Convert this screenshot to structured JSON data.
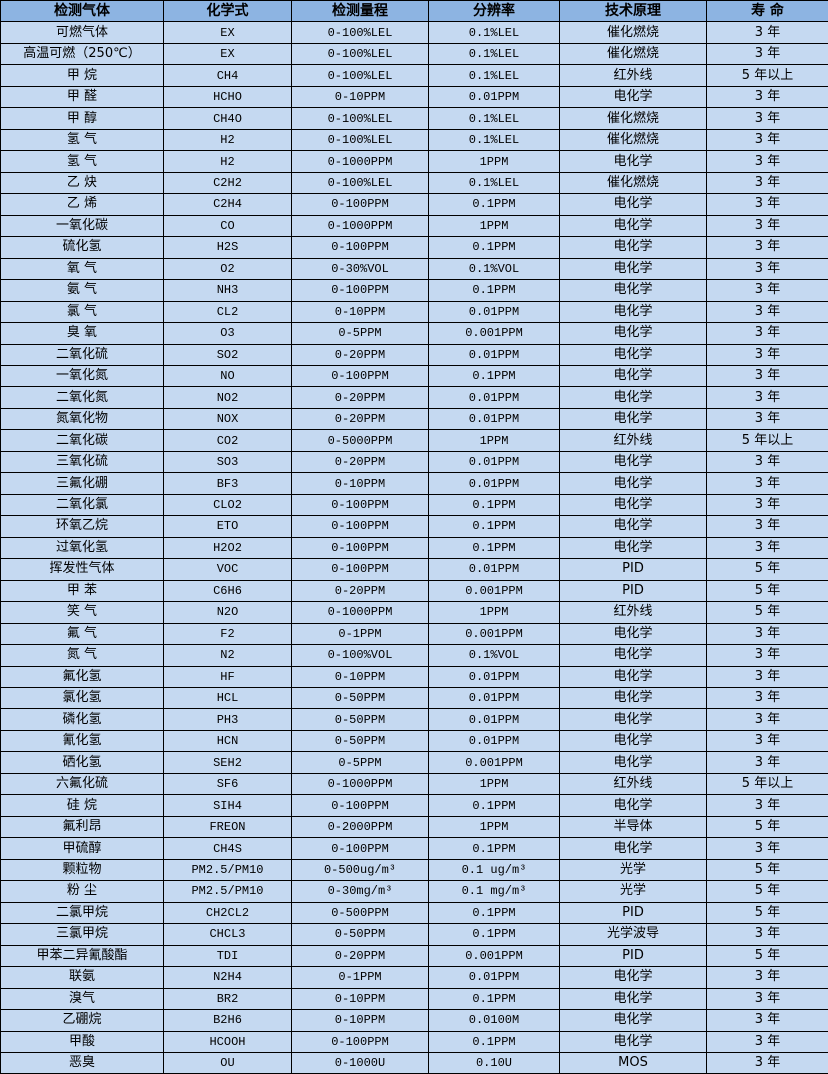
{
  "table": {
    "header_color": "#8DB4E2",
    "row_color": "#C5D9F1",
    "headers": [
      "检测气体",
      "化学式",
      "检测量程",
      "分辨率",
      "技术原理",
      "寿 命"
    ],
    "rows": [
      [
        "可燃气体",
        "EX",
        "0-100%LEL",
        "0.1%LEL",
        "催化燃烧",
        "3 年"
      ],
      [
        "高温可燃（250℃）",
        "EX",
        "0-100%LEL",
        "0.1%LEL",
        "催化燃烧",
        "3 年"
      ],
      [
        "甲 烷",
        "CH4",
        "0-100%LEL",
        "0.1%LEL",
        "红外线",
        "5 年以上"
      ],
      [
        "甲 醛",
        "HCHO",
        "0-10PPM",
        "0.01PPM",
        "电化学",
        "3 年"
      ],
      [
        "甲 醇",
        "CH4O",
        "0-100%LEL",
        "0.1%LEL",
        "催化燃烧",
        "3 年"
      ],
      [
        "氢 气",
        "H2",
        "0-100%LEL",
        "0.1%LEL",
        "催化燃烧",
        "3 年"
      ],
      [
        "氢 气",
        "H2",
        "0-1000PPM",
        "1PPM",
        "电化学",
        "3 年"
      ],
      [
        "乙 炔",
        "C2H2",
        "0-100%LEL",
        "0.1%LEL",
        "催化燃烧",
        "3 年"
      ],
      [
        "乙 烯",
        "C2H4",
        "0-100PPM",
        "0.1PPM",
        "电化学",
        "3 年"
      ],
      [
        "一氧化碳",
        "CO",
        "0-1000PPM",
        "1PPM",
        "电化学",
        "3 年"
      ],
      [
        "硫化氢",
        "H2S",
        "0-100PPM",
        "0.1PPM",
        "电化学",
        "3 年"
      ],
      [
        "氧 气",
        "O2",
        "0-30%VOL",
        "0.1%VOL",
        "电化学",
        "3 年"
      ],
      [
        "氨 气",
        "NH3",
        "0-100PPM",
        "0.1PPM",
        "电化学",
        "3 年"
      ],
      [
        "氯 气",
        "CL2",
        "0-10PPM",
        "0.01PPM",
        "电化学",
        "3 年"
      ],
      [
        "臭 氧",
        "O3",
        "0-5PPM",
        "0.001PPM",
        "电化学",
        "3 年"
      ],
      [
        "二氧化硫",
        "SO2",
        "0-20PPM",
        "0.01PPM",
        "电化学",
        "3 年"
      ],
      [
        "一氧化氮",
        "NO",
        "0-100PPM",
        "0.1PPM",
        "电化学",
        "3 年"
      ],
      [
        "二氧化氮",
        "NO2",
        "0-20PPM",
        "0.01PPM",
        "电化学",
        "3 年"
      ],
      [
        "氮氧化物",
        "NOX",
        "0-20PPM",
        "0.01PPM",
        "电化学",
        "3 年"
      ],
      [
        "二氧化碳",
        "CO2",
        "0-5000PPM",
        "1PPM",
        "红外线",
        "5 年以上"
      ],
      [
        "三氧化硫",
        "SO3",
        "0-20PPM",
        "0.01PPM",
        "电化学",
        "3 年"
      ],
      [
        "三氟化硼",
        "BF3",
        "0-10PPM",
        "0.01PPM",
        "电化学",
        "3 年"
      ],
      [
        "二氧化氯",
        "CLO2",
        "0-100PPM",
        "0.1PPM",
        "电化学",
        "3 年"
      ],
      [
        "环氧乙烷",
        "ETO",
        "0-100PPM",
        "0.1PPM",
        "电化学",
        "3 年"
      ],
      [
        "过氧化氢",
        "H2O2",
        "0-100PPM",
        "0.1PPM",
        "电化学",
        "3 年"
      ],
      [
        "挥发性气体",
        "VOC",
        "0-100PPM",
        "0.01PPM",
        "PID",
        "5 年"
      ],
      [
        "甲 苯",
        "C6H6",
        "0-20PPM",
        "0.001PPM",
        "PID",
        "5 年"
      ],
      [
        "笑 气",
        "N2O",
        "0-1000PPM",
        "1PPM",
        "红外线",
        "5 年"
      ],
      [
        "氟 气",
        "F2",
        "0-1PPM",
        "0.001PPM",
        "电化学",
        "3 年"
      ],
      [
        "氮 气",
        "N2",
        "0-100%VOL",
        "0.1%VOL",
        "电化学",
        "3 年"
      ],
      [
        "氟化氢",
        "HF",
        "0-10PPM",
        "0.01PPM",
        "电化学",
        "3 年"
      ],
      [
        "氯化氢",
        "HCL",
        "0-50PPM",
        "0.01PPM",
        "电化学",
        "3 年"
      ],
      [
        "磷化氢",
        "PH3",
        "0-50PPM",
        "0.01PPM",
        "电化学",
        "3 年"
      ],
      [
        "氰化氢",
        "HCN",
        "0-50PPM",
        "0.01PPM",
        "电化学",
        "3 年"
      ],
      [
        "硒化氢",
        "SEH2",
        "0-5PPM",
        "0.001PPM",
        "电化学",
        "3 年"
      ],
      [
        "六氟化硫",
        "SF6",
        "0-1000PPM",
        "1PPM",
        "红外线",
        "5 年以上"
      ],
      [
        "硅 烷",
        "SIH4",
        "0-100PPM",
        "0.1PPM",
        "电化学",
        "3 年"
      ],
      [
        "氟利昂",
        "FREON",
        "0-2000PPM",
        "1PPM",
        "半导体",
        "5 年"
      ],
      [
        "甲硫醇",
        "CH4S",
        "0-100PPM",
        "0.1PPM",
        "电化学",
        "3 年"
      ],
      [
        "颗粒物",
        "PM2.5/PM10",
        "0-500ug/m³",
        "0.1 ug/m³",
        "光学",
        "5 年"
      ],
      [
        "粉 尘",
        "PM2.5/PM10",
        "0-30mg/m³",
        "0.1 mg/m³",
        "光学",
        "5 年"
      ],
      [
        "二氯甲烷",
        "CH2CL2",
        "0-500PPM",
        "0.1PPM",
        "PID",
        "5 年"
      ],
      [
        "三氯甲烷",
        "CHCL3",
        "0-50PPM",
        "0.1PPM",
        "光学波导",
        "3 年"
      ],
      [
        "甲苯二异氰酸酯",
        "TDI",
        "0-20PPM",
        "0.001PPM",
        "PID",
        "5 年"
      ],
      [
        "联氨",
        "N2H4",
        "0-1PPM",
        "0.01PPM",
        "电化学",
        "3 年"
      ],
      [
        "溴气",
        "BR2",
        "0-10PPM",
        "0.1PPM",
        "电化学",
        "3 年"
      ],
      [
        "乙硼烷",
        "B2H6",
        "0-10PPM",
        "0.0100M",
        "电化学",
        "3 年"
      ],
      [
        "甲酸",
        "HCOOH",
        "0-100PPM",
        "0.1PPM",
        "电化学",
        "3 年"
      ],
      [
        "恶臭",
        "OU",
        "0-1000U",
        "0.10U",
        "MOS",
        "3 年"
      ]
    ]
  }
}
